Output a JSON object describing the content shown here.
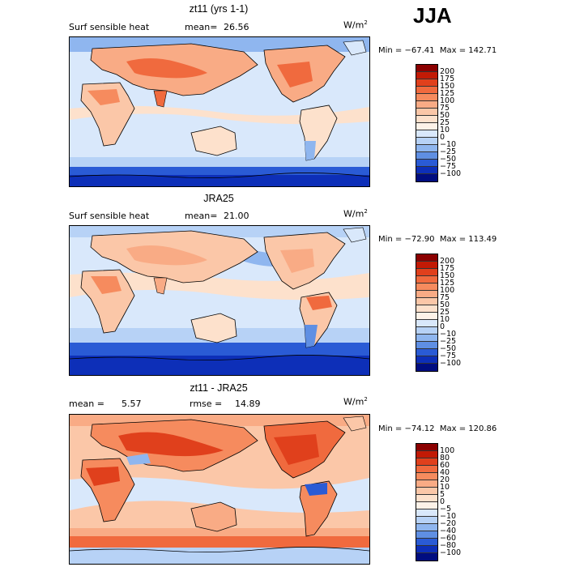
{
  "season": "JJA",
  "panels": [
    {
      "title": "zt11 (yrs 1-1)",
      "label_left": "Surf sensible heat",
      "stat1_label": "mean=",
      "stat1_value": "26.56",
      "stat2_label": "",
      "stat2_value": "",
      "units": "W/m",
      "units_sup": "2",
      "min": "-67.41",
      "max": "142.71",
      "minmax_text": "Min = −67.41  Max = 142.71",
      "ticks": [
        "200",
        "175",
        "150",
        "125",
        "100",
        "75",
        "50",
        "25",
        "10",
        "0",
        "−10",
        "−25",
        "−50",
        "−75",
        "−100"
      ],
      "colors": [
        "#8b0000",
        "#c21a05",
        "#e0401c",
        "#f06a3e",
        "#f68b5e",
        "#f9ab85",
        "#fbc7a8",
        "#fde1cc",
        "#fdf2e8",
        "#d9e8fb",
        "#b7d2f6",
        "#8fb6ef",
        "#5f8fe3",
        "#2a5bd5",
        "#0d2fb8",
        "#000d80"
      ]
    },
    {
      "title": "JRA25",
      "label_left": "Surf sensible heat",
      "stat1_label": "mean=",
      "stat1_value": "21.00",
      "stat2_label": "",
      "stat2_value": "",
      "units": "W/m",
      "units_sup": "2",
      "min": "-72.90",
      "max": "113.49",
      "minmax_text": "Min = −72.90  Max = 113.49",
      "ticks": [
        "200",
        "175",
        "150",
        "125",
        "100",
        "75",
        "50",
        "25",
        "10",
        "0",
        "−10",
        "−25",
        "−50",
        "−75",
        "−100"
      ],
      "colors": [
        "#8b0000",
        "#c21a05",
        "#e0401c",
        "#f06a3e",
        "#f68b5e",
        "#f9ab85",
        "#fbc7a8",
        "#fde1cc",
        "#fdf2e8",
        "#d9e8fb",
        "#b7d2f6",
        "#8fb6ef",
        "#5f8fe3",
        "#2a5bd5",
        "#0d2fb8",
        "#000d80"
      ]
    },
    {
      "title": "zt11 - JRA25",
      "label_left": "",
      "stat1_label": "mean =",
      "stat1_value": "5.57",
      "stat2_label": "rmse =",
      "stat2_value": "14.89",
      "units": "W/m",
      "units_sup": "2",
      "min": "-74.12",
      "max": "120.86",
      "minmax_text": "Min = −74.12  Max = 120.86",
      "ticks": [
        "100",
        "80",
        "60",
        "40",
        "20",
        "10",
        "5",
        "0",
        "−5",
        "−10",
        "−20",
        "−40",
        "−60",
        "−80",
        "−100"
      ],
      "colors": [
        "#8b0000",
        "#c21a05",
        "#e0401c",
        "#f06a3e",
        "#f68b5e",
        "#f9ab85",
        "#fbc7a8",
        "#fde1cc",
        "#fdf2e8",
        "#d9e8fb",
        "#b7d2f6",
        "#8fb6ef",
        "#5f8fe3",
        "#2a5bd5",
        "#0d2fb8",
        "#000d80"
      ]
    }
  ]
}
